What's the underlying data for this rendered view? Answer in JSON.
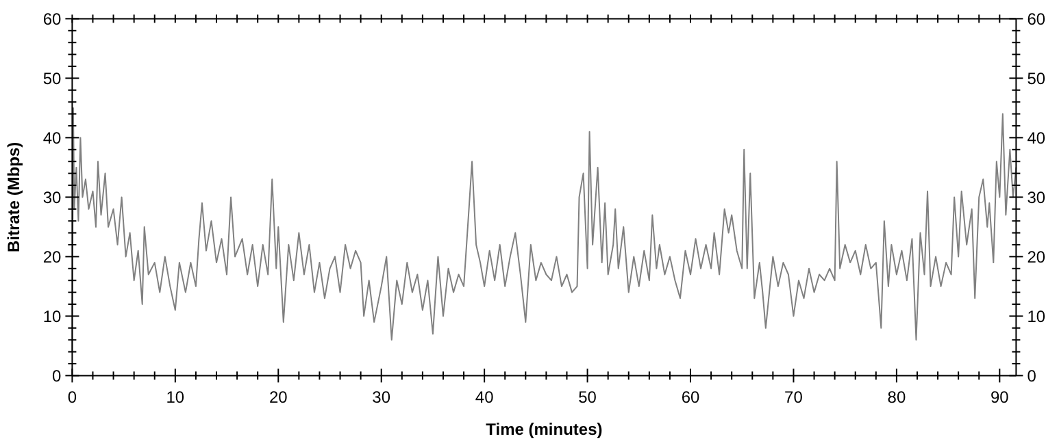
{
  "chart_data": {
    "type": "line",
    "xlabel": "Time (minutes)",
    "ylabel": "Bitrate (Mbps)",
    "xlim": [
      0,
      91.6
    ],
    "ylim": [
      0,
      60
    ],
    "y2lim": [
      0,
      60
    ],
    "xticks": [
      0,
      {
        "value": 2,
        "label": null
      },
      {
        "value": 4,
        "label": null
      },
      {
        "value": 6,
        "label": null
      },
      {
        "value": 8,
        "label": null
      },
      10,
      {
        "value": 12,
        "label": null
      },
      {
        "value": 14,
        "label": null
      },
      {
        "value": 16,
        "label": null
      },
      {
        "value": 18,
        "label": null
      },
      20,
      {
        "value": 22,
        "label": null
      },
      {
        "value": 24,
        "label": null
      },
      {
        "value": 26,
        "label": null
      },
      {
        "value": 28,
        "label": null
      },
      30,
      {
        "value": 32,
        "label": null
      },
      {
        "value": 34,
        "label": null
      },
      {
        "value": 36,
        "label": null
      },
      {
        "value": 38,
        "label": null
      },
      40,
      {
        "value": 42,
        "label": null
      },
      {
        "value": 44,
        "label": null
      },
      {
        "value": 46,
        "label": null
      },
      {
        "value": 48,
        "label": null
      },
      50,
      {
        "value": 52,
        "label": null
      },
      {
        "value": 54,
        "label": null
      },
      {
        "value": 56,
        "label": null
      },
      {
        "value": 58,
        "label": null
      },
      60,
      {
        "value": 62,
        "label": null
      },
      {
        "value": 64,
        "label": null
      },
      {
        "value": 66,
        "label": null
      },
      {
        "value": 68,
        "label": null
      },
      70,
      {
        "value": 72,
        "label": null
      },
      {
        "value": 74,
        "label": null
      },
      {
        "value": 76,
        "label": null
      },
      {
        "value": 78,
        "label": null
      },
      80,
      {
        "value": 82,
        "label": null
      },
      {
        "value": 84,
        "label": null
      },
      {
        "value": 86,
        "label": null
      },
      {
        "value": 88,
        "label": null
      },
      90
    ],
    "yticks": [
      0,
      {
        "value": 2,
        "label": null
      },
      {
        "value": 4,
        "label": null
      },
      {
        "value": 6,
        "label": null
      },
      {
        "value": 8,
        "label": null
      },
      10,
      {
        "value": 12,
        "label": null
      },
      {
        "value": 14,
        "label": null
      },
      {
        "value": 16,
        "label": null
      },
      {
        "value": 18,
        "label": null
      },
      20,
      {
        "value": 22,
        "label": null
      },
      {
        "value": 24,
        "label": null
      },
      {
        "value": 26,
        "label": null
      },
      {
        "value": 28,
        "label": null
      },
      30,
      {
        "value": 32,
        "label": null
      },
      {
        "value": 34,
        "label": null
      },
      {
        "value": 36,
        "label": null
      },
      {
        "value": 38,
        "label": null
      },
      40,
      {
        "value": 42,
        "label": null
      },
      {
        "value": 44,
        "label": null
      },
      {
        "value": 46,
        "label": null
      },
      {
        "value": 48,
        "label": null
      },
      50,
      {
        "value": 52,
        "label": null
      },
      {
        "value": 54,
        "label": null
      },
      {
        "value": 56,
        "label": null
      },
      {
        "value": 58,
        "label": null
      },
      60
    ],
    "y2ticks": [
      0,
      {
        "value": 2,
        "label": null
      },
      {
        "value": 4,
        "label": null
      },
      {
        "value": 6,
        "label": null
      },
      {
        "value": 8,
        "label": null
      },
      10,
      {
        "value": 12,
        "label": null
      },
      {
        "value": 14,
        "label": null
      },
      {
        "value": 16,
        "label": null
      },
      {
        "value": 18,
        "label": null
      },
      20,
      {
        "value": 22,
        "label": null
      },
      {
        "value": 24,
        "label": null
      },
      {
        "value": 26,
        "label": null
      },
      {
        "value": 28,
        "label": null
      },
      30,
      {
        "value": 32,
        "label": null
      },
      {
        "value": 34,
        "label": null
      },
      {
        "value": 36,
        "label": null
      },
      {
        "value": 38,
        "label": null
      },
      40,
      {
        "value": 42,
        "label": null
      },
      {
        "value": 44,
        "label": null
      },
      {
        "value": 46,
        "label": null
      },
      {
        "value": 48,
        "label": null
      },
      50,
      {
        "value": 52,
        "label": null
      },
      {
        "value": 54,
        "label": null
      },
      {
        "value": 56,
        "label": null
      },
      {
        "value": 58,
        "label": null
      },
      60
    ],
    "grid": false,
    "series": [
      {
        "color": "#808080",
        "x": [
          0,
          0.1,
          0.2,
          0.4,
          0.6,
          0.8,
          1,
          1.3,
          1.6,
          2,
          2.3,
          2.5,
          2.8,
          3.2,
          3.5,
          4,
          4.4,
          4.8,
          5.2,
          5.6,
          6,
          6.4,
          6.8,
          7,
          7.4,
          8,
          8.5,
          9,
          9.5,
          10,
          10.4,
          11,
          11.5,
          12,
          12.3,
          12.6,
          13,
          13.5,
          14,
          14.5,
          15,
          15.4,
          15.8,
          16.5,
          17,
          17.5,
          18,
          18.5,
          19,
          19.4,
          19.8,
          20,
          20.5,
          21,
          21.5,
          22,
          22.5,
          23,
          23.5,
          24,
          24.5,
          25,
          25.5,
          26,
          26.5,
          27,
          27.5,
          28,
          28.3,
          28.8,
          29.3,
          30,
          30.5,
          31,
          31.5,
          32,
          32.5,
          33,
          33.5,
          34,
          34.5,
          35,
          35.5,
          36,
          36.5,
          37,
          37.5,
          38,
          38.5,
          38.8,
          39.2,
          39.6,
          40,
          40.5,
          41,
          41.5,
          42,
          42.5,
          43,
          43.5,
          44,
          44.5,
          45,
          45.5,
          46,
          46.5,
          47,
          47.5,
          48,
          48.5,
          49,
          49.2,
          49.6,
          50,
          50.2,
          50.5,
          51,
          51.4,
          51.7,
          52,
          52.5,
          52.7,
          53,
          53.5,
          54,
          54.5,
          55,
          55.5,
          56,
          56.3,
          56.7,
          57,
          57.5,
          58,
          58.5,
          59,
          59.5,
          60,
          60.5,
          61,
          61.5,
          62,
          62.3,
          62.8,
          63.3,
          63.7,
          64,
          64.5,
          65,
          65.2,
          65.5,
          65.8,
          66.2,
          66.7,
          67,
          67.3,
          68,
          68.5,
          69,
          69.5,
          70,
          70.5,
          71,
          71.5,
          72,
          72.5,
          73,
          73.5,
          74,
          74.2,
          74.5,
          75,
          75.5,
          76,
          76.5,
          77,
          77.5,
          78,
          78.5,
          78.8,
          79.2,
          79.5,
          80,
          80.5,
          81,
          81.5,
          81.9,
          82.3,
          82.7,
          83,
          83.3,
          83.8,
          84.3,
          84.8,
          85.3,
          85.6,
          86,
          86.3,
          86.8,
          87.3,
          87.6,
          88,
          88.4,
          88.8,
          89,
          89.4,
          89.7,
          90,
          90.3,
          90.6,
          91,
          91.3,
          91.6
        ],
        "values": [
          4,
          45,
          28,
          35,
          26,
          40,
          30,
          33,
          28,
          31,
          25,
          36,
          27,
          34,
          25,
          28,
          22,
          30,
          20,
          24,
          16,
          21,
          12,
          25,
          17,
          19,
          14,
          20,
          15,
          11,
          19,
          14,
          19,
          15,
          23,
          29,
          21,
          26,
          19,
          23,
          17,
          30,
          20,
          23,
          17,
          22,
          15,
          22,
          17,
          33,
          18,
          25,
          9,
          22,
          16,
          24,
          17,
          22,
          14,
          19,
          13,
          18,
          20,
          14,
          22,
          18,
          21,
          19,
          10,
          16,
          9,
          15,
          20,
          6,
          16,
          12,
          19,
          14,
          17,
          11,
          16,
          7,
          20,
          10,
          18,
          14,
          17,
          15,
          28,
          36,
          22,
          19,
          15,
          21,
          16,
          22,
          15,
          20,
          24,
          17,
          9,
          22,
          16,
          19,
          17,
          16,
          20,
          15,
          17,
          14,
          15,
          30,
          34,
          18,
          41,
          22,
          35,
          19,
          29,
          17,
          22,
          28,
          18,
          25,
          14,
          20,
          15,
          21,
          16,
          27,
          18,
          22,
          17,
          20,
          16,
          13,
          21,
          17,
          23,
          18,
          22,
          18,
          24,
          17,
          28,
          24,
          27,
          21,
          18,
          38,
          18,
          34,
          13,
          19,
          14,
          8,
          20,
          15,
          19,
          17,
          10,
          16,
          13,
          18,
          14,
          17,
          16,
          18,
          16,
          36,
          18,
          22,
          19,
          21,
          17,
          22,
          18,
          19,
          8,
          26,
          15,
          22,
          17,
          21,
          16,
          23,
          6,
          24,
          17,
          31,
          15,
          20,
          15,
          19,
          17,
          30,
          20,
          31,
          22,
          28,
          13,
          30,
          33,
          25,
          29,
          19,
          36,
          30,
          44,
          27,
          38,
          30,
          35
        ]
      }
    ]
  }
}
